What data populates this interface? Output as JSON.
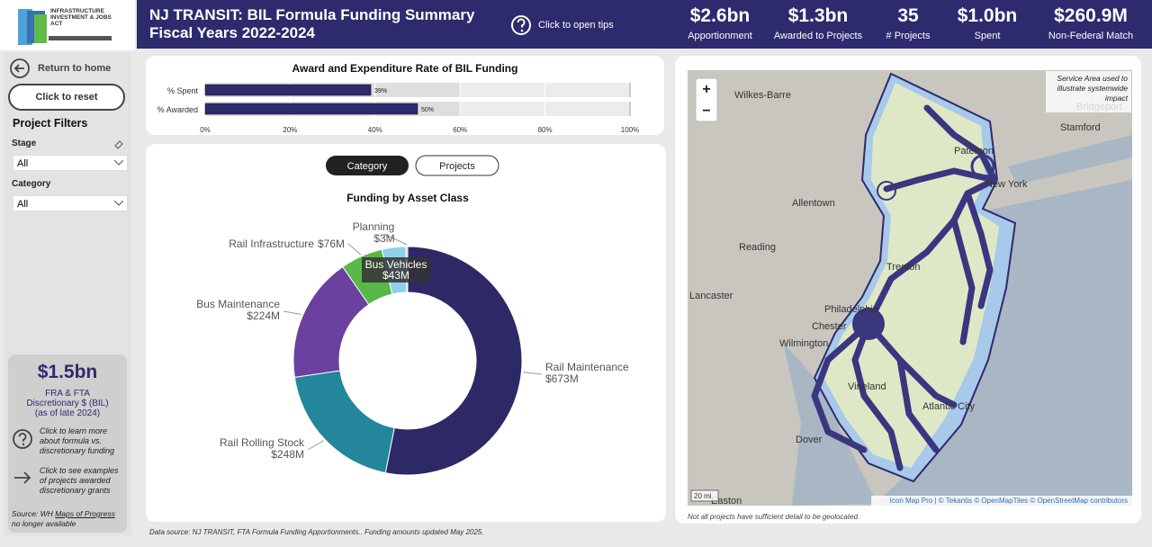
{
  "header": {
    "logo_text": "INFRASTRUCTURE INVESTMENT & JOBS ACT",
    "title_line1": "NJ TRANSIT: BIL Formula Funding Summary",
    "title_line2": "Fiscal Years 2022-2024",
    "tips": "Click to open tips"
  },
  "kpis": [
    {
      "value": "$2.6bn",
      "label": "Apportionment"
    },
    {
      "value": "$1.3bn",
      "label": "Awarded to Projects"
    },
    {
      "value": "35",
      "label": "# Projects"
    },
    {
      "value": "$1.0bn",
      "label": "Spent"
    },
    {
      "value": "$260.9M",
      "label": "Non-Federal Match"
    }
  ],
  "sidebar": {
    "home": "Return to home",
    "reset": "Click to reset",
    "filters_title": "Project Filters",
    "stage_label": "Stage",
    "stage_value": "All",
    "category_label": "Category",
    "category_value": "All",
    "discretionary_value": "$1.5bn",
    "discretionary_label": "FRA & FTA Discretionary $ (BIL) (as of late 2024)",
    "learn": "Click to learn more about formula vs. discretionary funding",
    "examples": "Click to see examples of projects awarded discretionary grants",
    "source_prefix": "Source: WH",
    "source_link": "Maps of Progress",
    "source_suffix": "no longer available"
  },
  "toggle": {
    "active": "Category",
    "inactive": "Projects"
  },
  "chart_data": [
    {
      "type": "hbar",
      "title": "Award and Expenditure Rate of BIL Funding",
      "categories": [
        "% Spent",
        "% Awarded"
      ],
      "values": [
        39,
        50
      ],
      "value_labels": [
        "39%",
        "50%"
      ],
      "color": "#2e2a6e",
      "xlim": [
        0,
        100
      ],
      "xticks": [
        {
          "value": 0,
          "label": "0%"
        },
        {
          "value": 20,
          "label": "20%"
        },
        {
          "value": 40,
          "label": "40%"
        },
        {
          "value": 60,
          "label": "60%"
        },
        {
          "value": 80,
          "label": "80%"
        },
        {
          "value": 100,
          "label": "100%"
        }
      ]
    },
    {
      "type": "donut",
      "title": "Funding by Asset Class",
      "categories": [
        "Rail Maintenance",
        "Rail Rolling Stock",
        "Bus Maintenance",
        "Rail Infrastructure",
        "Bus Vehicles",
        "Planning"
      ],
      "values": [
        673,
        248,
        224,
        76,
        43,
        3
      ],
      "value_labels": [
        "$673M",
        "$248M",
        "$224M",
        "$76M",
        "$43M",
        "$3M"
      ],
      "colors": [
        "#2c2966",
        "#23869a",
        "#6a41a0",
        "#57b947",
        "#8fd0e6",
        "#c9c9c9"
      ]
    }
  ],
  "map": {
    "cities": [
      "Wilkes-Barre",
      "Allentown",
      "Reading",
      "Lancaster",
      "Philadelphia",
      "Chester",
      "Wilmington",
      "Dover",
      "Trenton",
      "Paterson",
      "New York",
      "Stamford",
      "Bridgeport",
      "Atlantic City",
      "Vineland",
      "Easton"
    ],
    "note": "Service Area used to illustrate systemwide impact",
    "zoom_in": "+",
    "zoom_out": "−",
    "scale": "20 mi",
    "attribution": "Icon Map Pro | © Tekantis © OpenMapTiles © OpenStreetMap contributors",
    "footnote": "Not all projects have sufficient detail to be geolocated."
  },
  "footer": "Data source: NJ TRANSIT, FTA Formula Funding Apportionments.. Funding amounts updated May 2025."
}
